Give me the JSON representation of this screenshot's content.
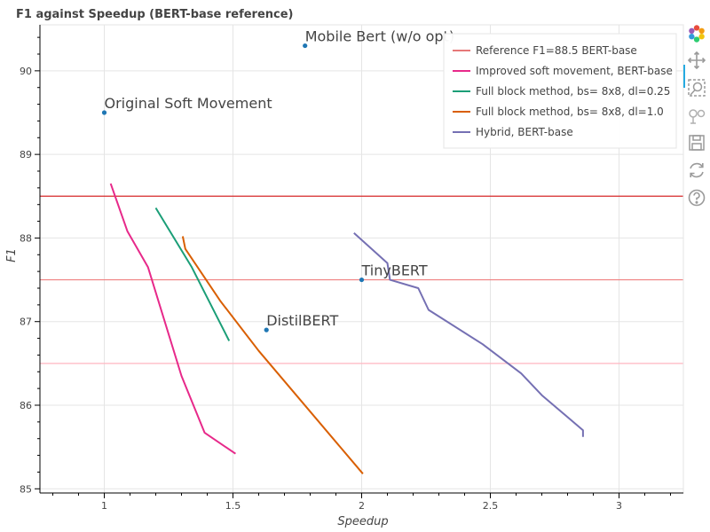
{
  "chart_data": {
    "type": "line",
    "title": "F1 against Speedup (BERT-base reference)",
    "xlabel": "Speedup",
    "ylabel": "F1",
    "xlim": [
      0.75,
      3.25
    ],
    "ylim": [
      84.95,
      90.55
    ],
    "xticks": [
      1,
      1.5,
      2,
      2.5,
      3
    ],
    "xtick_labels": [
      "1",
      "1.5",
      "2",
      "2.5",
      "3"
    ],
    "yticks": [
      85,
      86,
      87,
      88,
      89,
      90
    ],
    "ytick_labels": [
      "85",
      "86",
      "87",
      "88",
      "89",
      "90"
    ],
    "grid": true,
    "legend_position": "top-right",
    "hlines": [
      {
        "name": "Reference F1=88.5 BERT-base",
        "y": 88.5,
        "color": "#d62728",
        "in_legend": true
      },
      {
        "name": "",
        "y": 87.5,
        "color": "#f08080",
        "in_legend": false
      },
      {
        "name": "",
        "y": 86.5,
        "color": "#ffb6c1",
        "in_legend": false
      }
    ],
    "series": [
      {
        "name": "Improved soft movement, BERT-base",
        "color": "#e7298a",
        "x": [
          1.025,
          1.09,
          1.17,
          1.3,
          1.39,
          1.51
        ],
        "y": [
          88.65,
          88.08,
          87.65,
          86.35,
          85.67,
          85.42
        ]
      },
      {
        "name": "Full block method, bs= 8x8, dl=0.25",
        "color": "#1b9e77",
        "x": [
          1.2,
          1.34,
          1.485
        ],
        "y": [
          88.36,
          87.65,
          86.77
        ]
      },
      {
        "name": "Full block method, bs= 8x8, dl=1.0",
        "color": "#d95f02",
        "x": [
          1.305,
          1.315,
          1.45,
          1.6,
          2.005
        ],
        "y": [
          88.02,
          87.87,
          87.25,
          86.65,
          85.18
        ]
      },
      {
        "name": "Hybrid, BERT-base",
        "color": "#7570b3",
        "x": [
          1.97,
          2.1,
          2.11,
          2.22,
          2.26,
          2.47,
          2.62,
          2.7,
          2.86,
          2.86
        ],
        "y": [
          88.06,
          87.7,
          87.5,
          87.4,
          87.14,
          86.73,
          86.38,
          86.12,
          85.7,
          85.62
        ]
      }
    ],
    "points": [
      {
        "label": "Original Soft Movement",
        "x": 1.0,
        "y": 89.5
      },
      {
        "label": "Mobile Bert (w/o opt)",
        "x": 1.78,
        "y": 90.3
      },
      {
        "label": "TinyBERT",
        "x": 2.0,
        "y": 87.5
      },
      {
        "label": "DistilBERT",
        "x": 1.63,
        "y": 86.9
      }
    ],
    "point_color": "#1f77b4"
  },
  "toolbar": {
    "logo": "bokeh-logo-icon",
    "tools": [
      "pan-icon",
      "box-zoom-icon",
      "wheel-zoom-icon",
      "save-icon",
      "reset-icon",
      "help-icon"
    ]
  }
}
